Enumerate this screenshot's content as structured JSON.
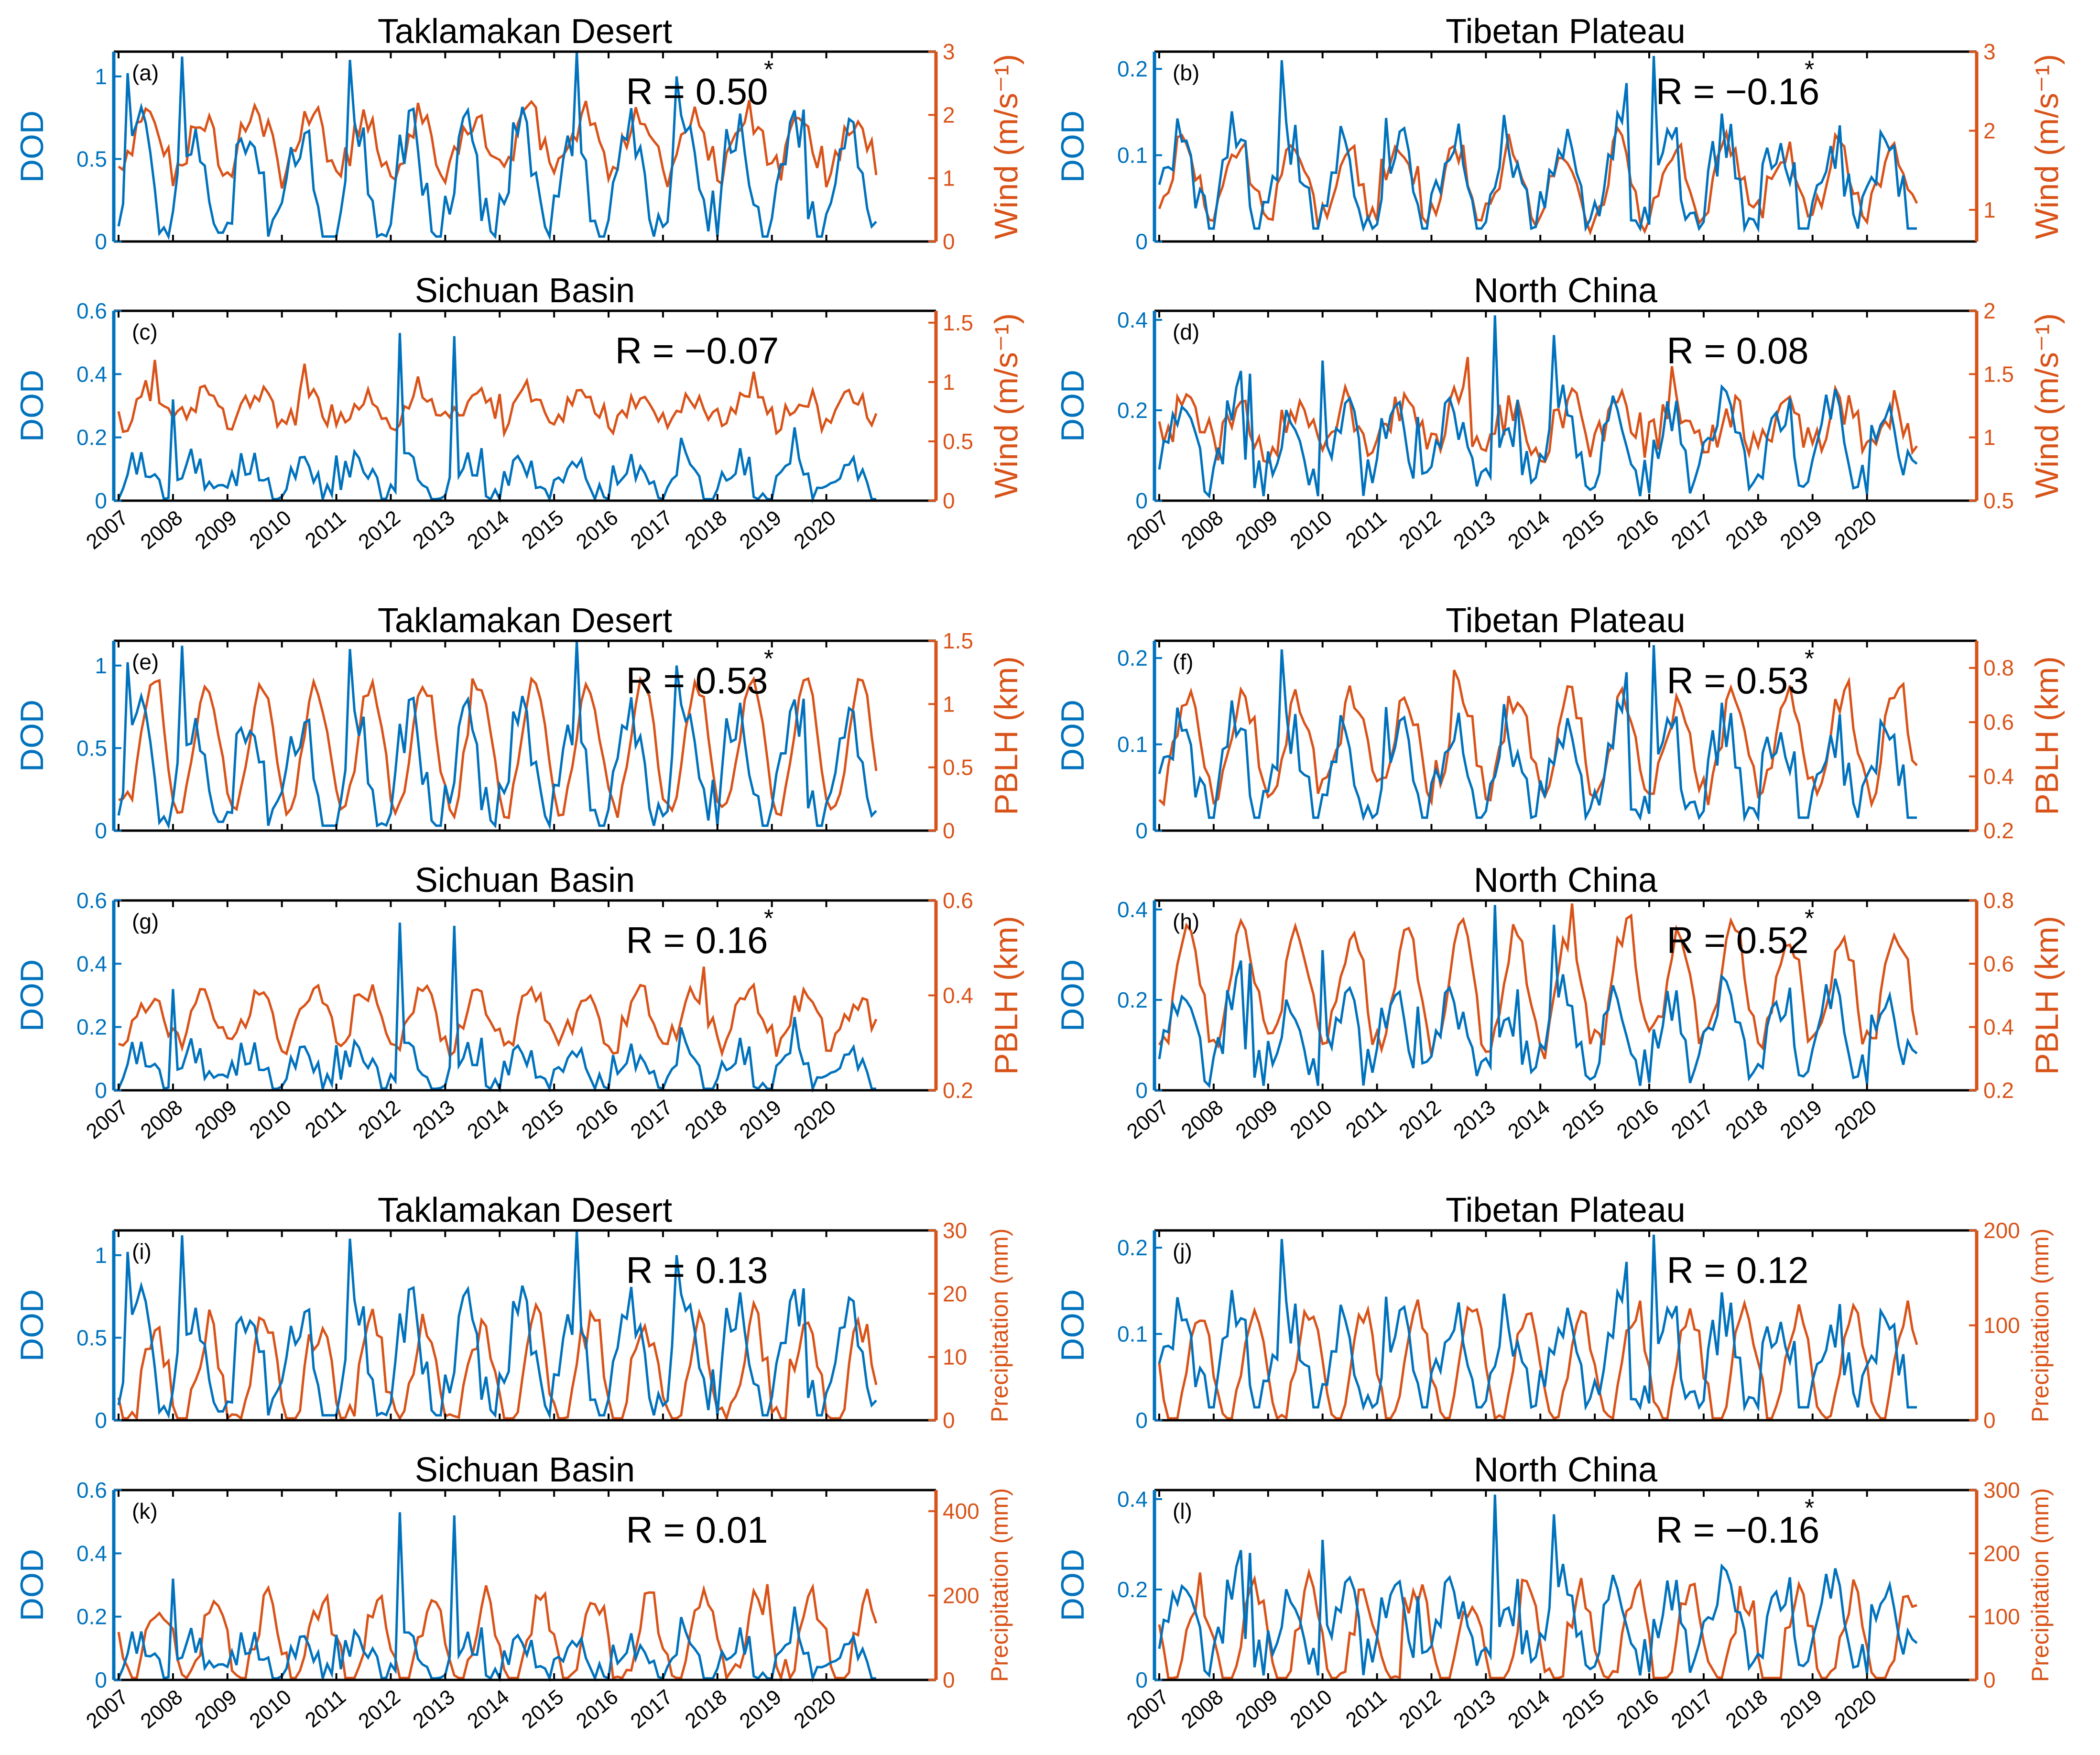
{
  "colors": {
    "dod": "#0072BD",
    "met": "#D95319",
    "axis": "#000000"
  },
  "x_ticks": [
    "2007",
    "2008",
    "2009",
    "2010",
    "2011",
    "2012",
    "2013",
    "2014",
    "2015",
    "2016",
    "2017",
    "2018",
    "2019",
    "2020"
  ],
  "regions": {
    "td": {
      "title": "Taklamakan Desert",
      "dod_ylim": [
        0,
        1.15
      ],
      "dod_ticks": [
        0,
        0.5,
        1
      ]
    },
    "tp": {
      "title": "Tibetan Plateau",
      "dod_ylim": [
        0,
        0.22
      ],
      "dod_ticks": [
        0,
        0.1,
        0.2
      ]
    },
    "sb": {
      "title": "Sichuan Basin",
      "dod_ylim": [
        0,
        0.6
      ],
      "dod_ticks": [
        0,
        0.2,
        0.4,
        0.6
      ]
    },
    "nc": {
      "title": "North China",
      "dod_ylim": [
        0,
        0.42
      ],
      "dod_ticks": [
        0,
        0.2,
        0.4
      ]
    }
  },
  "chart_data": [
    {
      "id": "a",
      "type": "line",
      "label": "(a)",
      "title": "Taklamakan Desert",
      "region": "td",
      "r_text": "R = 0.50",
      "significant": true,
      "ylabel_left": "DOD",
      "ylabel_right": "Wind (m/s⁻¹)",
      "ylim_right": [
        0,
        3
      ],
      "ticks_right": [
        0,
        1,
        2,
        3
      ],
      "series": [
        {
          "name": "DOD"
        },
        {
          "name": "Wind",
          "mean": 1.55,
          "amp": 0.45,
          "noise": 0.28,
          "phase": 3.5
        }
      ]
    },
    {
      "id": "b",
      "type": "line",
      "label": "(b)",
      "title": "Tibetan Plateau",
      "region": "tp",
      "r_text": "R = −0.16",
      "significant": true,
      "ylabel_left": "DOD",
      "ylabel_right": "Wind (m/s⁻¹)",
      "ylim_right": [
        0.6,
        3
      ],
      "ticks_right": [
        1,
        2,
        3
      ],
      "series": [
        {
          "name": "DOD"
        },
        {
          "name": "Wind",
          "mean": 1.35,
          "amp": 0.45,
          "noise": 0.2,
          "phase": 2.5
        }
      ]
    },
    {
      "id": "c",
      "type": "line",
      "label": "(c)",
      "title": "Sichuan Basin",
      "region": "sb",
      "r_text": "R = −0.07",
      "significant": false,
      "ylabel_left": "DOD",
      "ylabel_right": "Wind (m/s⁻¹)",
      "ylim_right": [
        0,
        1.6
      ],
      "ticks_right": [
        0,
        0.5,
        1,
        1.5
      ],
      "series": [
        {
          "name": "DOD"
        },
        {
          "name": "Wind",
          "mean": 0.78,
          "amp": 0.12,
          "noise": 0.12,
          "phase": 3.5
        }
      ]
    },
    {
      "id": "d",
      "type": "line",
      "label": "(d)",
      "title": "North China",
      "region": "nc",
      "r_text": "R = 0.08",
      "significant": false,
      "ylabel_left": "DOD",
      "ylabel_right": "Wind (m/s⁻¹)",
      "ylim_right": [
        0.5,
        2
      ],
      "ticks_right": [
        0.5,
        1,
        1.5,
        2
      ],
      "series": [
        {
          "name": "DOD"
        },
        {
          "name": "Wind",
          "mean": 1.1,
          "amp": 0.15,
          "noise": 0.18,
          "phase": 3.0
        }
      ]
    },
    {
      "id": "e",
      "type": "line",
      "label": "(e)",
      "title": "Taklamakan Desert",
      "region": "td",
      "r_text": "R = 0.53",
      "significant": true,
      "ylabel_left": "DOD",
      "ylabel_right": "PBLH (km)",
      "ylim_right": [
        0,
        1.5
      ],
      "ticks_right": [
        0,
        0.5,
        1,
        1.5
      ],
      "series": [
        {
          "name": "DOD"
        },
        {
          "name": "PBLH",
          "mean": 0.65,
          "amp": 0.5,
          "noise": 0.07,
          "phase": 4.5
        }
      ]
    },
    {
      "id": "f",
      "type": "line",
      "label": "(f)",
      "title": "Tibetan Plateau",
      "region": "tp",
      "r_text": "R = 0.53",
      "significant": true,
      "ylabel_left": "DOD",
      "ylabel_right": "PBLH (km)",
      "ylim_right": [
        0.2,
        0.9
      ],
      "ticks_right": [
        0.2,
        0.4,
        0.6,
        0.8
      ],
      "series": [
        {
          "name": "DOD"
        },
        {
          "name": "PBLH",
          "mean": 0.52,
          "amp": 0.18,
          "noise": 0.06,
          "phase": 3.5
        }
      ]
    },
    {
      "id": "g",
      "type": "line",
      "label": "(g)",
      "title": "Sichuan Basin",
      "region": "sb",
      "r_text": "R = 0.16",
      "significant": true,
      "ylabel_left": "DOD",
      "ylabel_right": "PBLH (km)",
      "ylim_right": [
        0.2,
        0.6
      ],
      "ticks_right": [
        0.2,
        0.4,
        0.6
      ],
      "series": [
        {
          "name": "DOD"
        },
        {
          "name": "PBLH",
          "mean": 0.35,
          "amp": 0.05,
          "noise": 0.03,
          "phase": 4.0
        }
      ]
    },
    {
      "id": "h",
      "type": "line",
      "label": "(h)",
      "title": "North China",
      "region": "nc",
      "r_text": "R = 0.52",
      "significant": true,
      "ylabel_left": "DOD",
      "ylabel_right": "PBLH (km)",
      "ylim_right": [
        0.2,
        0.8
      ],
      "ticks_right": [
        0.2,
        0.4,
        0.6,
        0.8
      ],
      "series": [
        {
          "name": "DOD"
        },
        {
          "name": "PBLH",
          "mean": 0.52,
          "amp": 0.18,
          "noise": 0.05,
          "phase": 3.5
        }
      ]
    },
    {
      "id": "i",
      "type": "line",
      "label": "(i)",
      "title": "Taklamakan Desert",
      "region": "td",
      "r_text": "R = 0.13",
      "significant": false,
      "ylabel_left": "DOD",
      "ylabel_right": "Precipitation (mm)",
      "ylim_right": [
        0,
        30
      ],
      "ticks_right": [
        0,
        10,
        20,
        30
      ],
      "series": [
        {
          "name": "DOD"
        },
        {
          "name": "Precipitation",
          "mean": 7,
          "amp": 8,
          "noise": 3,
          "phase": 5.0
        }
      ]
    },
    {
      "id": "j",
      "type": "line",
      "label": "(j)",
      "title": "Tibetan Plateau",
      "region": "tp",
      "r_text": "R = 0.12",
      "significant": false,
      "ylabel_left": "DOD",
      "ylabel_right": "Precipitation (mm)",
      "ylim_right": [
        0,
        200
      ],
      "ticks_right": [
        0,
        100,
        200
      ],
      "series": [
        {
          "name": "DOD"
        },
        {
          "name": "Precipitation",
          "mean": 55,
          "amp": 60,
          "noise": 12,
          "phase": 6.0
        }
      ]
    },
    {
      "id": "k",
      "type": "line",
      "label": "(k)",
      "title": "Sichuan Basin",
      "region": "sb",
      "r_text": "R = 0.01",
      "significant": false,
      "ylabel_left": "DOD",
      "ylabel_right": "Precipitation (mm)",
      "ylim_right": [
        0,
        450
      ],
      "ticks_right": [
        0,
        200,
        400
      ],
      "series": [
        {
          "name": "DOD"
        },
        {
          "name": "Precipitation",
          "mean": 90,
          "amp": 100,
          "noise": 35,
          "phase": 6.0
        }
      ]
    },
    {
      "id": "l",
      "type": "line",
      "label": "(l)",
      "title": "North China",
      "region": "nc",
      "r_text": "R = −0.16",
      "significant": true,
      "ylabel_left": "DOD",
      "ylabel_right": "Precipitation (mm)",
      "ylim_right": [
        0,
        300
      ],
      "ticks_right": [
        0,
        100,
        200,
        300
      ],
      "series": [
        {
          "name": "DOD"
        },
        {
          "name": "Precipitation",
          "mean": 60,
          "amp": 80,
          "noise": 30,
          "phase": 6.0
        }
      ]
    }
  ]
}
